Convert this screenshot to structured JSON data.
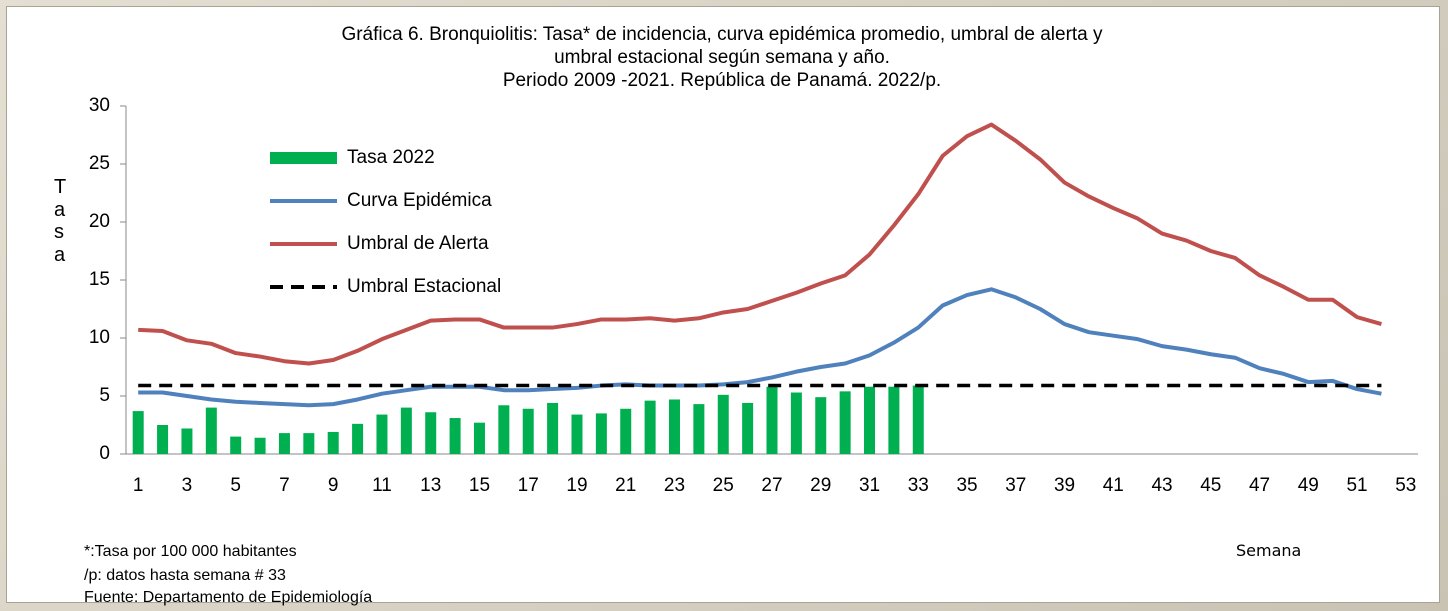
{
  "chart_data": {
    "type": "combo",
    "title": [
      "Gráfica 6. Bronquiolitis: Tasa* de incidencia, curva epidémica promedio, umbral de alerta   y",
      "umbral estacional según semana y año.",
      "Periodo 2009 -2021. República de Panamá. 2022/p."
    ],
    "y_label": "Tasa",
    "x_label": "Semana",
    "notes": [
      "*:Tasa por 100 000 habitantes",
      "/p: datos hasta semana  # 33",
      "Fuente: Departamento de Epidemiología"
    ],
    "categories": [
      1,
      null,
      3,
      null,
      5,
      null,
      7,
      null,
      9,
      null,
      11,
      null,
      13,
      null,
      15,
      null,
      17,
      null,
      19,
      null,
      21,
      null,
      23,
      null,
      25,
      null,
      27,
      null,
      29,
      null,
      31,
      null,
      33,
      null,
      35,
      null,
      37,
      null,
      39,
      null,
      41,
      null,
      43,
      null,
      45,
      null,
      47,
      null,
      49,
      null,
      51,
      null,
      53
    ],
    "ylim": [
      0,
      30
    ],
    "yticks": [
      0,
      5,
      10,
      15,
      20,
      25,
      30
    ],
    "legend": "upper left",
    "series": [
      {
        "name": "Tasa 2022",
        "type": "bar",
        "color": "#00b050",
        "values": [
          3.7,
          2.5,
          2.2,
          4.0,
          1.5,
          1.4,
          1.8,
          1.8,
          1.9,
          2.6,
          3.4,
          4.0,
          3.6,
          3.1,
          2.7,
          4.2,
          3.9,
          4.4,
          3.4,
          3.5,
          3.9,
          4.6,
          4.7,
          4.3,
          5.1,
          4.4,
          5.8,
          5.3,
          4.9,
          5.4,
          5.8,
          5.8,
          5.9,
          null,
          null,
          null,
          null,
          null,
          null,
          null,
          null,
          null,
          null,
          null,
          null,
          null,
          null,
          null,
          null,
          null,
          null,
          null,
          null
        ]
      },
      {
        "name": "Curva Epidémica",
        "type": "line",
        "color": "#4f81bd",
        "values": [
          5.3,
          5.3,
          5.0,
          4.7,
          4.5,
          4.4,
          4.3,
          4.2,
          4.3,
          4.7,
          5.2,
          5.5,
          5.8,
          5.8,
          5.8,
          5.5,
          5.5,
          5.6,
          5.7,
          5.9,
          6.0,
          5.9,
          5.9,
          5.9,
          6.0,
          6.2,
          6.6,
          7.1,
          7.5,
          7.8,
          8.5,
          9.6,
          10.9,
          12.8,
          13.7,
          14.2,
          13.5,
          12.5,
          11.2,
          10.5,
          10.2,
          9.9,
          9.3,
          9.0,
          8.6,
          8.3,
          7.4,
          6.9,
          6.2,
          6.3,
          5.6,
          5.2,
          null
        ]
      },
      {
        "name": "Umbral de Alerta",
        "type": "line",
        "color": "#c0504d",
        "values": [
          10.7,
          10.6,
          9.8,
          9.5,
          8.7,
          8.4,
          8.0,
          7.8,
          8.1,
          8.9,
          9.9,
          10.7,
          11.5,
          11.6,
          11.6,
          10.9,
          10.9,
          10.9,
          11.2,
          11.6,
          11.6,
          11.7,
          11.5,
          11.7,
          12.2,
          12.5,
          13.2,
          13.9,
          14.7,
          15.4,
          17.2,
          19.7,
          22.4,
          25.7,
          27.4,
          28.4,
          27.0,
          25.4,
          23.4,
          22.2,
          21.2,
          20.3,
          19.0,
          18.4,
          17.5,
          16.9,
          15.4,
          14.4,
          13.3,
          13.3,
          11.8,
          11.2,
          null
        ]
      },
      {
        "name": "Umbral Estacional",
        "type": "line",
        "dashed": true,
        "color": "#000000",
        "values": [
          5.9,
          5.9,
          5.9,
          5.9,
          5.9,
          5.9,
          5.9,
          5.9,
          5.9,
          5.9,
          5.9,
          5.9,
          5.9,
          5.9,
          5.9,
          5.9,
          5.9,
          5.9,
          5.9,
          5.9,
          5.9,
          5.9,
          5.9,
          5.9,
          5.9,
          5.9,
          5.9,
          5.9,
          5.9,
          5.9,
          5.9,
          5.9,
          5.9,
          5.9,
          5.9,
          5.9,
          5.9,
          5.9,
          5.9,
          5.9,
          5.9,
          5.9,
          5.9,
          5.9,
          5.9,
          5.9,
          5.9,
          5.9,
          5.9,
          5.9,
          5.9,
          5.9,
          null
        ]
      }
    ]
  }
}
